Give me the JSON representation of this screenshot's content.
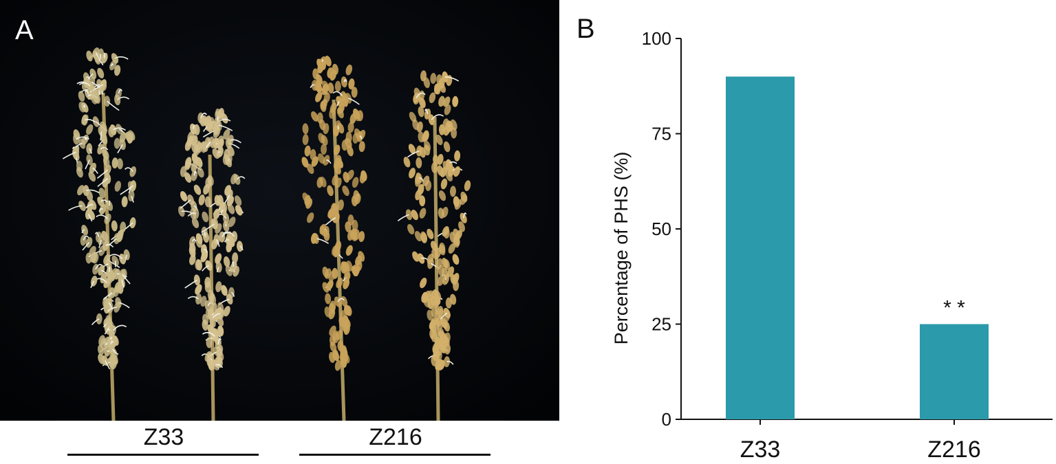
{
  "panel_a": {
    "label": "A",
    "groups": [
      {
        "name": "Z33"
      },
      {
        "name": "Z216"
      }
    ]
  },
  "panel_b": {
    "label": "B"
  },
  "chart_data": {
    "type": "bar",
    "categories": [
      "Z33",
      "Z216"
    ],
    "values": [
      90,
      25
    ],
    "ylabel": "Percentage of PHS (%)",
    "xlabel": "",
    "ylim": [
      0,
      100
    ],
    "yticks": [
      0,
      25,
      50,
      75,
      100
    ],
    "annotations": [
      {
        "category": "Z216",
        "text": "* *"
      }
    ],
    "grid": false,
    "bar_color": "#2b9aaa"
  }
}
